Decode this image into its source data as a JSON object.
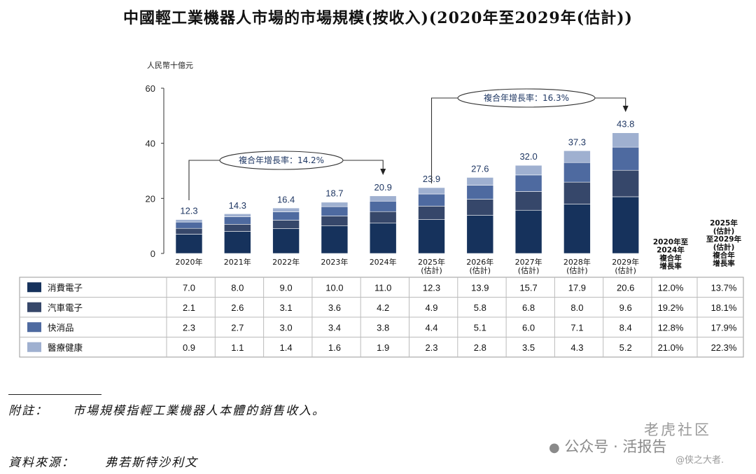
{
  "title": "中國輕工業機器人市場的市場規模(按收入)(2020年至2029年(估計))",
  "chart_data": {
    "type": "bar",
    "stacked": true,
    "ylabel": "人民幣十億元",
    "ylim": [
      0,
      60
    ],
    "yticks": [
      "0",
      "20",
      "40",
      "60"
    ],
    "categories": [
      [
        "2020年"
      ],
      [
        "2021年"
      ],
      [
        "2022年"
      ],
      [
        "2023年"
      ],
      [
        "2024年"
      ],
      [
        "2025年",
        "(估計)"
      ],
      [
        "2026年",
        "(估計)"
      ],
      [
        "2027年",
        "(估計)"
      ],
      [
        "2028年",
        "(估計)"
      ],
      [
        "2029年",
        "(估計)"
      ]
    ],
    "totals": [
      12.3,
      14.3,
      16.4,
      18.7,
      20.9,
      23.9,
      27.6,
      32.0,
      37.3,
      43.8
    ],
    "total_labels": [
      "12.3",
      "14.3",
      "16.4",
      "18.7",
      "20.9",
      "23.9",
      "27.6",
      "32.0",
      "37.3",
      "43.8"
    ],
    "series": [
      {
        "name": "消費電子",
        "color": "#16325c",
        "values": [
          7.0,
          8.0,
          9.0,
          10.0,
          11.0,
          12.3,
          13.9,
          15.7,
          17.9,
          20.6
        ],
        "labels": [
          "7.0",
          "8.0",
          "9.0",
          "10.0",
          "11.0",
          "12.3",
          "13.9",
          "15.7",
          "17.9",
          "20.6"
        ],
        "cagr_2020_2024": "12.0%",
        "cagr_2025_2029": "13.7%"
      },
      {
        "name": "汽車電子",
        "color": "#36476a",
        "values": [
          2.1,
          2.6,
          3.1,
          3.6,
          4.2,
          4.9,
          5.8,
          6.8,
          8.0,
          9.6
        ],
        "labels": [
          "2.1",
          "2.6",
          "3.1",
          "3.6",
          "4.2",
          "4.9",
          "5.8",
          "6.8",
          "8.0",
          "9.6"
        ],
        "cagr_2020_2024": "19.2%",
        "cagr_2025_2029": "18.1%"
      },
      {
        "name": "快消品",
        "color": "#4e6aa0",
        "values": [
          2.3,
          2.7,
          3.0,
          3.4,
          3.8,
          4.4,
          5.1,
          6.0,
          7.1,
          8.4
        ],
        "labels": [
          "2.3",
          "2.7",
          "3.0",
          "3.4",
          "3.8",
          "4.4",
          "5.1",
          "6.0",
          "7.1",
          "8.4"
        ],
        "cagr_2020_2024": "12.8%",
        "cagr_2025_2029": "17.9%"
      },
      {
        "name": "醫療健康",
        "color": "#9fb0d0",
        "values": [
          0.9,
          1.1,
          1.4,
          1.6,
          1.9,
          2.3,
          2.8,
          3.5,
          4.3,
          5.2
        ],
        "labels": [
          "0.9",
          "1.1",
          "1.4",
          "1.6",
          "1.9",
          "2.3",
          "2.8",
          "3.5",
          "4.3",
          "5.2"
        ],
        "cagr_2020_2024": "21.0%",
        "cagr_2025_2029": "22.3%"
      }
    ],
    "cagr_annotations": [
      {
        "text": "複合年增長率：14.2%",
        "from": 0,
        "to": 4
      },
      {
        "text": "複合年增長率：16.3%",
        "from": 5,
        "to": 9
      }
    ],
    "cagr_column_headers": [
      [
        "2020年至",
        "2024年",
        "複合年",
        "增長率"
      ],
      [
        "2025年",
        "(估計)",
        "至2029年",
        "(估計)",
        "複合年",
        "增長率"
      ]
    ]
  },
  "notes": {
    "note_label": "附註：",
    "note_text": "市場規模指輕工業機器人本體的銷售收入。",
    "source_label": "資料來源：",
    "source_text": "弗若斯特沙利文"
  },
  "watermark": {
    "line1": "老虎社区",
    "line2": "公众号 · 活报告",
    "line3": "@侠之大者."
  }
}
